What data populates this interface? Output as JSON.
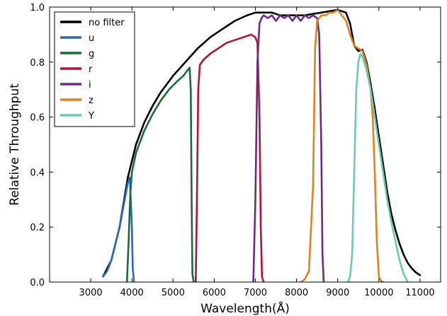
{
  "chart_data": {
    "type": "line",
    "title": "",
    "xlabel": "Wavelength(Å)",
    "ylabel": "Relative Throughput",
    "xlim": [
      2000,
      11500
    ],
    "ylim": [
      0,
      1.0
    ],
    "x_ticks": [
      3000,
      4000,
      5000,
      6000,
      7000,
      8000,
      9000,
      10000,
      11000
    ],
    "y_ticks": [
      0.0,
      0.2,
      0.4,
      0.6,
      0.8,
      1.0
    ],
    "x_tick_labels": [
      "3000",
      "4000",
      "5000",
      "6000",
      "7000",
      "8000",
      "9000",
      "10000",
      "11000"
    ],
    "y_tick_labels": [
      "0.0",
      "0.2",
      "0.4",
      "0.6",
      "0.8",
      "1.0"
    ],
    "grid": false,
    "legend_position": "top-left",
    "series": [
      {
        "name": "no filter",
        "color": "#000000",
        "x": [
          3300,
          3500,
          3700,
          3900,
          4100,
          4300,
          4500,
          4700,
          5000,
          5300,
          5600,
          5900,
          6200,
          6500,
          6800,
          7000,
          7200,
          7400,
          7600,
          7800,
          8000,
          8200,
          8400,
          8600,
          8800,
          9000,
          9200,
          9300,
          9400,
          9500,
          9600,
          9700,
          9800,
          9900,
          10000,
          10100,
          10200,
          10300,
          10400,
          10500,
          10600,
          10700,
          10800,
          10900,
          11000
        ],
        "y": [
          0.02,
          0.08,
          0.2,
          0.38,
          0.5,
          0.58,
          0.64,
          0.69,
          0.75,
          0.8,
          0.85,
          0.89,
          0.92,
          0.95,
          0.97,
          0.98,
          0.98,
          0.98,
          0.97,
          0.97,
          0.97,
          0.97,
          0.975,
          0.98,
          0.985,
          0.99,
          0.98,
          0.94,
          0.86,
          0.84,
          0.845,
          0.8,
          0.72,
          0.63,
          0.53,
          0.43,
          0.33,
          0.25,
          0.19,
          0.14,
          0.1,
          0.07,
          0.05,
          0.035,
          0.025
        ]
      },
      {
        "name": "u",
        "color": "#2a6ab4",
        "x": [
          3300,
          3400,
          3500,
          3600,
          3700,
          3800,
          3900,
          3950,
          4000,
          4020,
          4050
        ],
        "y": [
          0.02,
          0.04,
          0.08,
          0.14,
          0.2,
          0.28,
          0.36,
          0.38,
          0.2,
          0.05,
          0.0
        ]
      },
      {
        "name": "g",
        "color": "#1b6b3a",
        "x": [
          3880,
          3920,
          3960,
          4000,
          4100,
          4300,
          4500,
          4700,
          4900,
          5100,
          5250,
          5350,
          5400,
          5430,
          5450,
          5470,
          5500
        ],
        "y": [
          0.0,
          0.15,
          0.32,
          0.4,
          0.47,
          0.55,
          0.61,
          0.66,
          0.7,
          0.73,
          0.75,
          0.77,
          0.78,
          0.7,
          0.3,
          0.03,
          0.0
        ]
      },
      {
        "name": "r",
        "color": "#b3123a",
        "x": [
          5550,
          5580,
          5610,
          5650,
          5750,
          5900,
          6100,
          6300,
          6500,
          6700,
          6900,
          7000,
          7050,
          7100,
          7130,
          7160,
          7200
        ],
        "y": [
          0.0,
          0.3,
          0.7,
          0.79,
          0.81,
          0.83,
          0.85,
          0.87,
          0.88,
          0.89,
          0.9,
          0.89,
          0.87,
          0.6,
          0.2,
          0.02,
          0.0
        ]
      },
      {
        "name": "i",
        "color": "#6b2a86",
        "x": [
          6950,
          7000,
          7050,
          7100,
          7150,
          7200,
          7300,
          7400,
          7500,
          7600,
          7700,
          7800,
          7900,
          8000,
          8100,
          8200,
          8300,
          8400,
          8500,
          8550,
          8600,
          8630,
          8660
        ],
        "y": [
          0.0,
          0.3,
          0.8,
          0.94,
          0.96,
          0.97,
          0.96,
          0.97,
          0.95,
          0.97,
          0.96,
          0.97,
          0.95,
          0.97,
          0.95,
          0.97,
          0.96,
          0.97,
          0.96,
          0.9,
          0.5,
          0.1,
          0.0
        ]
      },
      {
        "name": "z",
        "color": "#e3801f",
        "x": [
          8100,
          8200,
          8300,
          8400,
          8450,
          8500,
          8550,
          8600,
          8700,
          8800,
          8900,
          9000,
          9100,
          9200,
          9300,
          9400,
          9500,
          9600,
          9700,
          9800,
          9850,
          9900,
          9950,
          10000,
          10050,
          10100
        ],
        "y": [
          0.0,
          0.01,
          0.04,
          0.35,
          0.85,
          0.95,
          0.96,
          0.97,
          0.97,
          0.98,
          0.98,
          0.99,
          0.97,
          0.95,
          0.9,
          0.86,
          0.85,
          0.84,
          0.79,
          0.7,
          0.6,
          0.4,
          0.15,
          0.02,
          0.005,
          0.0
        ]
      },
      {
        "name": "Y",
        "color": "#6dc9b6",
        "x": [
          9250,
          9300,
          9350,
          9400,
          9450,
          9500,
          9550,
          9600,
          9700,
          9800,
          9900,
          10000,
          10100,
          10200,
          10300,
          10400,
          10500,
          10600,
          10700
        ],
        "y": [
          0.0,
          0.02,
          0.1,
          0.4,
          0.7,
          0.8,
          0.83,
          0.82,
          0.77,
          0.7,
          0.6,
          0.5,
          0.4,
          0.3,
          0.22,
          0.15,
          0.08,
          0.03,
          0.0
        ]
      }
    ]
  }
}
